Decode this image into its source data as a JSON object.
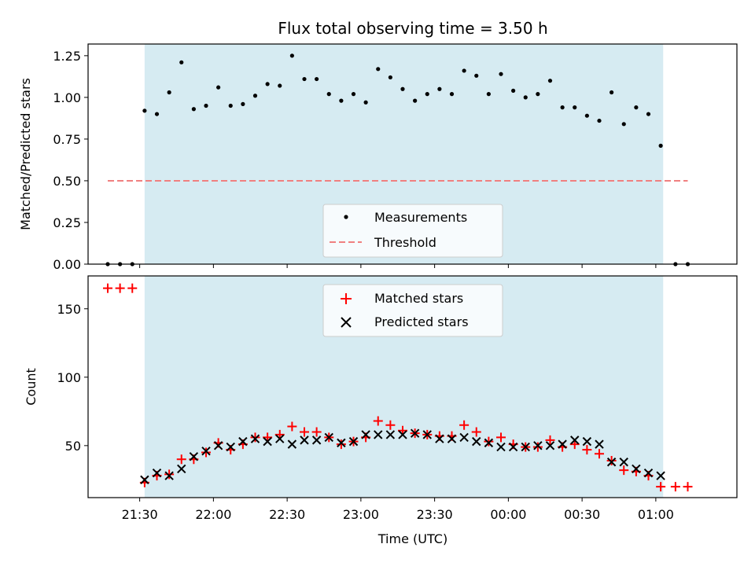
{
  "chart_data": [
    {
      "type": "scatter",
      "title": "Flux total observing time = 3.50 h",
      "xlabel": "",
      "ylabel": "Matched/Predicted stars",
      "ylim": [
        0,
        1.32
      ],
      "xlim": [
        "21:09",
        "01:33"
      ],
      "yticks": [
        "0.00",
        "0.25",
        "0.50",
        "0.75",
        "1.00",
        "1.25"
      ],
      "shaded_span": [
        "21:32",
        "01:03"
      ],
      "legend_position": "lower-center",
      "colors": {
        "points": "#000000",
        "threshold": "#f08080",
        "span": "#add8e6"
      },
      "series": [
        {
          "name": "Measurements",
          "x": [
            "21:17",
            "21:22",
            "21:27",
            "21:32",
            "21:37",
            "21:42",
            "21:47",
            "21:52",
            "21:57",
            "22:02",
            "22:07",
            "22:12",
            "22:17",
            "22:22",
            "22:27",
            "22:32",
            "22:37",
            "22:42",
            "22:47",
            "22:52",
            "22:57",
            "23:02",
            "23:07",
            "23:12",
            "23:17",
            "23:22",
            "23:27",
            "23:32",
            "23:37",
            "23:42",
            "23:47",
            "23:52",
            "23:57",
            "00:02",
            "00:07",
            "00:12",
            "00:17",
            "00:22",
            "00:27",
            "00:32",
            "00:37",
            "00:42",
            "00:47",
            "00:52",
            "00:57",
            "01:02",
            "01:08",
            "01:13"
          ],
          "values": [
            0.0,
            0.0,
            0.0,
            0.92,
            0.9,
            1.03,
            1.21,
            0.93,
            0.95,
            1.06,
            0.95,
            0.96,
            1.01,
            1.08,
            1.07,
            1.25,
            1.11,
            1.11,
            1.02,
            0.98,
            1.02,
            0.97,
            1.17,
            1.12,
            1.05,
            0.98,
            1.02,
            1.05,
            1.02,
            1.16,
            1.13,
            1.02,
            1.14,
            1.04,
            1.0,
            1.02,
            1.1,
            0.94,
            0.94,
            0.89,
            0.86,
            1.03,
            0.84,
            0.94,
            0.9,
            0.71,
            0.0,
            0.0
          ]
        },
        {
          "name": "Threshold",
          "x": [
            "21:17",
            "01:13"
          ],
          "values": [
            0.5,
            0.5
          ]
        }
      ]
    },
    {
      "type": "scatter",
      "title": "",
      "xlabel": "Time (UTC)",
      "ylabel": "Count",
      "ylim": [
        12,
        174
      ],
      "xlim": [
        "21:09",
        "01:33"
      ],
      "yticks": [
        "50",
        "100",
        "150"
      ],
      "xticks": [
        "21:30",
        "22:00",
        "22:30",
        "23:00",
        "23:30",
        "00:00",
        "00:30",
        "01:00"
      ],
      "shaded_span": [
        "21:32",
        "01:03"
      ],
      "legend_position": "upper-center",
      "colors": {
        "matched": "#ff0000",
        "predicted": "#000000",
        "span": "#add8e6"
      },
      "series": [
        {
          "name": "Matched stars",
          "x": [
            "21:17",
            "21:22",
            "21:27",
            "21:32",
            "21:37",
            "21:42",
            "21:47",
            "21:52",
            "21:57",
            "22:02",
            "22:07",
            "22:12",
            "22:17",
            "22:22",
            "22:27",
            "22:32",
            "22:37",
            "22:42",
            "22:47",
            "22:52",
            "22:57",
            "23:02",
            "23:07",
            "23:12",
            "23:17",
            "23:22",
            "23:27",
            "23:32",
            "23:37",
            "23:42",
            "23:47",
            "23:52",
            "23:57",
            "00:02",
            "00:07",
            "00:12",
            "00:17",
            "00:22",
            "00:27",
            "00:32",
            "00:37",
            "00:42",
            "00:47",
            "00:52",
            "00:57",
            "01:02",
            "01:08",
            "01:13"
          ],
          "values": [
            165,
            165,
            165,
            23,
            28,
            29,
            40,
            40,
            45,
            52,
            47,
            51,
            56,
            56,
            58,
            64,
            60,
            60,
            56,
            51,
            53,
            56,
            68,
            65,
            61,
            59,
            58,
            57,
            57,
            65,
            60,
            53,
            56,
            51,
            49,
            49,
            54,
            49,
            51,
            47,
            44,
            39,
            32,
            31,
            28,
            20,
            20,
            20
          ]
        },
        {
          "name": "Predicted stars",
          "x": [
            "21:32",
            "21:37",
            "21:42",
            "21:47",
            "21:52",
            "21:57",
            "22:02",
            "22:07",
            "22:12",
            "22:17",
            "22:22",
            "22:27",
            "22:32",
            "22:37",
            "22:42",
            "22:47",
            "22:52",
            "22:57",
            "23:02",
            "23:07",
            "23:12",
            "23:17",
            "23:22",
            "23:27",
            "23:32",
            "23:37",
            "23:42",
            "23:47",
            "23:52",
            "23:57",
            "00:02",
            "00:07",
            "00:12",
            "00:17",
            "00:22",
            "00:27",
            "00:32",
            "00:37",
            "00:42",
            "00:47",
            "00:52",
            "00:57",
            "01:02"
          ],
          "values": [
            25,
            30,
            28,
            33,
            42,
            46,
            50,
            49,
            53,
            55,
            53,
            55,
            51,
            54,
            54,
            56,
            52,
            53,
            58,
            58,
            58,
            58,
            59,
            58,
            55,
            55,
            56,
            53,
            52,
            49,
            49,
            49,
            50,
            50,
            51,
            54,
            53,
            51,
            38,
            38,
            33,
            30,
            28
          ]
        }
      ]
    }
  ]
}
